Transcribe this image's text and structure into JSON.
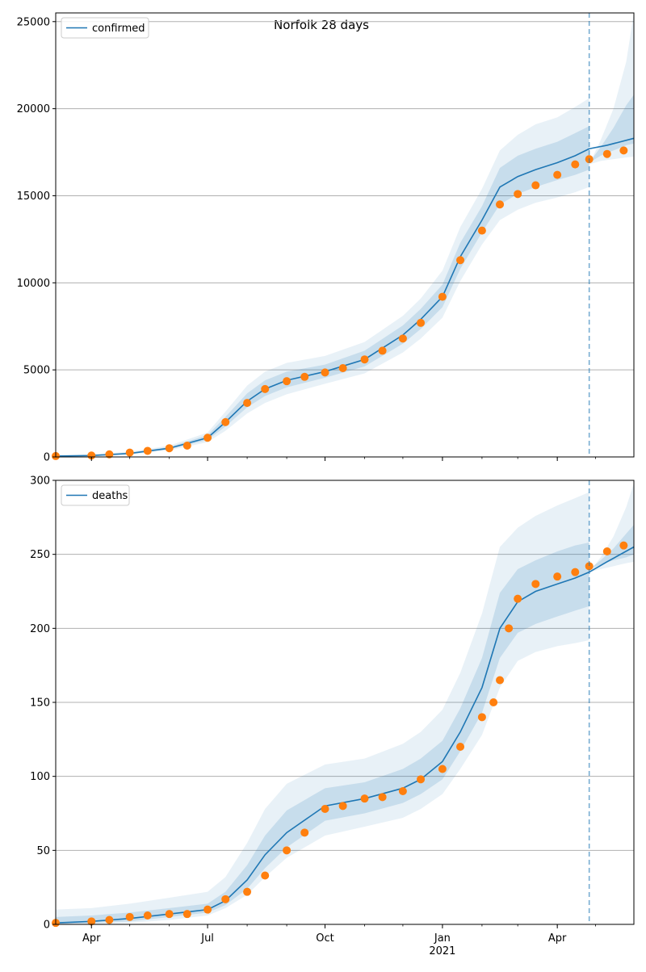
{
  "figure_title": "Norfolk 28 days",
  "colors": {
    "model_line": "#1f77b4",
    "observed": "#ff7f0e",
    "band": "#1f77b4",
    "grid": "#b0b0b0",
    "vline": "#1f77b4"
  },
  "chart_data": [
    {
      "type": "line",
      "title": "Norfolk 28 days",
      "xlabel": "",
      "ylabel": "",
      "x_ticks": [
        {
          "date": "2020-04-01",
          "label": "Apr",
          "sublabel": ""
        },
        {
          "date": "2020-07-01",
          "label": "Jul",
          "sublabel": ""
        },
        {
          "date": "2020-10-01",
          "label": "Oct",
          "sublabel": ""
        },
        {
          "date": "2021-01-01",
          "label": "Jan",
          "sublabel": ""
        },
        {
          "date": "2021-04-01",
          "label": "Apr",
          "sublabel": ""
        }
      ],
      "xlim": [
        "2020-03-04",
        "2021-05-31"
      ],
      "ylim": [
        0,
        25500
      ],
      "y_ticks": [
        0,
        5000,
        10000,
        15000,
        20000,
        25000
      ],
      "grid": "y",
      "legend": {
        "position": "top-left",
        "entries": [
          "confirmed"
        ]
      },
      "forecast_start": "2021-04-26",
      "series": [
        {
          "name": "confirmed",
          "style": "line",
          "x": [
            "2020-03-04",
            "2020-04-01",
            "2020-05-01",
            "2020-06-01",
            "2020-07-01",
            "2020-07-15",
            "2020-08-01",
            "2020-08-15",
            "2020-09-01",
            "2020-10-01",
            "2020-11-01",
            "2020-12-01",
            "2020-12-15",
            "2021-01-01",
            "2021-01-15",
            "2021-02-01",
            "2021-02-15",
            "2021-03-01",
            "2021-03-15",
            "2021-04-01",
            "2021-04-15",
            "2021-04-26",
            "2021-05-10",
            "2021-05-31"
          ],
          "y": [
            50,
            80,
            200,
            500,
            1100,
            2000,
            3200,
            3900,
            4400,
            4900,
            5600,
            7000,
            7900,
            9200,
            11500,
            13600,
            15500,
            16100,
            16500,
            16900,
            17300,
            17700,
            17900,
            18300
          ]
        },
        {
          "name": "",
          "style": "markers",
          "x": [
            "2020-03-04",
            "2020-04-01",
            "2020-04-15",
            "2020-05-01",
            "2020-05-15",
            "2020-06-01",
            "2020-06-15",
            "2020-07-01",
            "2020-07-15",
            "2020-08-01",
            "2020-08-15",
            "2020-09-01",
            "2020-09-15",
            "2020-10-01",
            "2020-10-15",
            "2020-11-01",
            "2020-11-15",
            "2020-12-01",
            "2020-12-15",
            "2021-01-01",
            "2021-01-15",
            "2021-02-01",
            "2021-02-15",
            "2021-03-01",
            "2021-03-15",
            "2021-04-01",
            "2021-04-15",
            "2021-04-26",
            "2021-05-10",
            "2021-05-23"
          ],
          "y": [
            50,
            80,
            150,
            250,
            350,
            500,
            650,
            1100,
            2000,
            3100,
            3900,
            4350,
            4600,
            4850,
            5100,
            5600,
            6100,
            6800,
            7700,
            9200,
            11300,
            13000,
            14500,
            15100,
            15600,
            16200,
            16800,
            17100,
            17400,
            17600
          ]
        }
      ],
      "bands": [
        {
          "level": "outer",
          "x": [
            "2020-03-04",
            "2020-04-01",
            "2020-05-01",
            "2020-06-01",
            "2020-07-01",
            "2020-07-15",
            "2020-08-01",
            "2020-08-15",
            "2020-09-01",
            "2020-10-01",
            "2020-11-01",
            "2020-12-01",
            "2020-12-15",
            "2021-01-01",
            "2021-01-15",
            "2021-02-01",
            "2021-02-15",
            "2021-03-01",
            "2021-03-15",
            "2021-04-01",
            "2021-04-15",
            "2021-04-26"
          ],
          "lower": [
            20,
            40,
            140,
            380,
            850,
            1500,
            2500,
            3100,
            3600,
            4200,
            4800,
            6000,
            6800,
            8000,
            10100,
            12200,
            13600,
            14200,
            14600,
            14900,
            15200,
            15500
          ],
          "upper": [
            90,
            150,
            300,
            650,
            1400,
            2600,
            4100,
            4900,
            5400,
            5800,
            6600,
            8100,
            9100,
            10700,
            13200,
            15400,
            17600,
            18500,
            19100,
            19500,
            20100,
            20600
          ]
        },
        {
          "level": "inner",
          "x": [
            "2020-03-04",
            "2020-04-01",
            "2020-05-01",
            "2020-06-01",
            "2020-07-01",
            "2020-07-15",
            "2020-08-01",
            "2020-08-15",
            "2020-09-01",
            "2020-10-01",
            "2020-11-01",
            "2020-12-01",
            "2020-12-15",
            "2021-01-01",
            "2021-01-15",
            "2021-02-01",
            "2021-02-15",
            "2021-03-01",
            "2021-03-15",
            "2021-04-01",
            "2021-04-15",
            "2021-04-26"
          ],
          "lower": [
            35,
            60,
            170,
            440,
            980,
            1750,
            2850,
            3500,
            4000,
            4550,
            5200,
            6500,
            7350,
            8600,
            10800,
            12900,
            14500,
            15100,
            15500,
            15900,
            16200,
            16500
          ],
          "upper": [
            70,
            110,
            250,
            570,
            1250,
            2300,
            3650,
            4400,
            4900,
            5300,
            6100,
            7550,
            8500,
            9900,
            12300,
            14400,
            16600,
            17300,
            17700,
            18100,
            18600,
            19000
          ]
        },
        {
          "level": "forecast-outer",
          "x": [
            "2021-04-26",
            "2021-05-05",
            "2021-05-15",
            "2021-05-25",
            "2021-05-31"
          ],
          "lower": [
            16800,
            17000,
            17100,
            17200,
            17250
          ],
          "upper": [
            16800,
            18200,
            20000,
            22700,
            25500
          ]
        },
        {
          "level": "forecast-inner",
          "x": [
            "2021-04-26",
            "2021-05-05",
            "2021-05-15",
            "2021-05-25",
            "2021-05-31"
          ],
          "lower": [
            16900,
            17300,
            17600,
            17900,
            18000
          ],
          "upper": [
            16900,
            17800,
            18900,
            20200,
            20800
          ]
        }
      ]
    },
    {
      "type": "line",
      "title": "",
      "xlabel": "",
      "ylabel": "",
      "x_ticks": [
        {
          "date": "2020-04-01",
          "label": "Apr",
          "sublabel": ""
        },
        {
          "date": "2020-07-01",
          "label": "Jul",
          "sublabel": ""
        },
        {
          "date": "2020-10-01",
          "label": "Oct",
          "sublabel": ""
        },
        {
          "date": "2021-01-01",
          "label": "Jan",
          "sublabel": "2021"
        },
        {
          "date": "2021-04-01",
          "label": "Apr",
          "sublabel": ""
        }
      ],
      "xlim": [
        "2020-03-04",
        "2021-05-31"
      ],
      "ylim": [
        0,
        300
      ],
      "y_ticks": [
        0,
        50,
        100,
        150,
        200,
        250,
        300
      ],
      "grid": "y",
      "legend": {
        "position": "top-left",
        "entries": [
          "deaths"
        ]
      },
      "forecast_start": "2021-04-26",
      "series": [
        {
          "name": "deaths",
          "style": "line",
          "x": [
            "2020-03-04",
            "2020-04-01",
            "2020-05-01",
            "2020-06-01",
            "2020-07-01",
            "2020-07-15",
            "2020-08-01",
            "2020-08-15",
            "2020-09-01",
            "2020-10-01",
            "2020-11-01",
            "2020-12-01",
            "2020-12-15",
            "2021-01-01",
            "2021-01-15",
            "2021-02-01",
            "2021-02-15",
            "2021-03-01",
            "2021-03-15",
            "2021-04-01",
            "2021-04-15",
            "2021-04-26",
            "2021-05-10",
            "2021-05-31"
          ],
          "y": [
            1,
            2,
            4,
            7,
            10,
            16,
            30,
            47,
            62,
            80,
            85,
            92,
            98,
            110,
            130,
            160,
            200,
            218,
            225,
            230,
            234,
            238,
            245,
            255
          ]
        },
        {
          "name": "",
          "style": "markers",
          "x": [
            "2020-03-04",
            "2020-04-01",
            "2020-04-15",
            "2020-05-01",
            "2020-05-15",
            "2020-06-01",
            "2020-06-15",
            "2020-07-01",
            "2020-07-15",
            "2020-08-01",
            "2020-08-15",
            "2020-09-01",
            "2020-09-15",
            "2020-10-01",
            "2020-10-15",
            "2020-11-01",
            "2020-11-15",
            "2020-12-01",
            "2020-12-15",
            "2021-01-01",
            "2021-01-15",
            "2021-02-01",
            "2021-02-10",
            "2021-02-15",
            "2021-02-22",
            "2021-03-01",
            "2021-03-15",
            "2021-04-01",
            "2021-04-15",
            "2021-04-26",
            "2021-05-10",
            "2021-05-23"
          ],
          "y": [
            1,
            2,
            3,
            5,
            6,
            7,
            7,
            10,
            17,
            22,
            33,
            50,
            62,
            78,
            80,
            85,
            86,
            90,
            98,
            105,
            120,
            140,
            150,
            165,
            200,
            220,
            230,
            235,
            238,
            242,
            252,
            256
          ]
        }
      ],
      "bands": [
        {
          "level": "outer",
          "x": [
            "2020-03-04",
            "2020-04-01",
            "2020-05-01",
            "2020-06-01",
            "2020-07-01",
            "2020-07-15",
            "2020-08-01",
            "2020-08-15",
            "2020-09-01",
            "2020-10-01",
            "2020-11-01",
            "2020-12-01",
            "2020-12-15",
            "2021-01-01",
            "2021-01-15",
            "2021-02-01",
            "2021-02-15",
            "2021-03-01",
            "2021-03-15",
            "2021-04-01",
            "2021-04-15",
            "2021-04-26"
          ],
          "lower": [
            0,
            0,
            1,
            3,
            6,
            11,
            20,
            32,
            45,
            60,
            66,
            72,
            78,
            88,
            105,
            128,
            160,
            178,
            184,
            188,
            190,
            192
          ],
          "upper": [
            10,
            11,
            14,
            18,
            22,
            32,
            55,
            78,
            95,
            108,
            112,
            122,
            130,
            145,
            170,
            210,
            255,
            268,
            276,
            283,
            288,
            292
          ]
        },
        {
          "level": "inner",
          "x": [
            "2020-03-04",
            "2020-04-01",
            "2020-05-01",
            "2020-06-01",
            "2020-07-01",
            "2020-07-15",
            "2020-08-01",
            "2020-08-15",
            "2020-09-01",
            "2020-10-01",
            "2020-11-01",
            "2020-12-01",
            "2020-12-15",
            "2021-01-01",
            "2021-01-15",
            "2021-02-01",
            "2021-02-15",
            "2021-03-01",
            "2021-03-15",
            "2021-04-01",
            "2021-04-15",
            "2021-04-26"
          ],
          "lower": [
            0,
            1,
            2,
            5,
            8,
            13,
            24,
            38,
            52,
            70,
            75,
            82,
            88,
            98,
            117,
            143,
            180,
            197,
            203,
            208,
            212,
            215
          ],
          "upper": [
            5,
            6,
            8,
            11,
            14,
            22,
            40,
            60,
            77,
            92,
            96,
            105,
            112,
            124,
            146,
            180,
            224,
            240,
            246,
            252,
            256,
            258
          ]
        },
        {
          "level": "forecast-outer",
          "x": [
            "2021-04-26",
            "2021-05-05",
            "2021-05-15",
            "2021-05-25",
            "2021-05-31"
          ],
          "lower": [
            238,
            240,
            242,
            244,
            245
          ],
          "upper": [
            238,
            248,
            262,
            282,
            298
          ]
        },
        {
          "level": "forecast-inner",
          "x": [
            "2021-04-26",
            "2021-05-05",
            "2021-05-15",
            "2021-05-25",
            "2021-05-31"
          ],
          "lower": [
            240,
            243,
            246,
            248,
            250
          ],
          "upper": [
            240,
            246,
            254,
            264,
            270
          ]
        }
      ]
    }
  ]
}
